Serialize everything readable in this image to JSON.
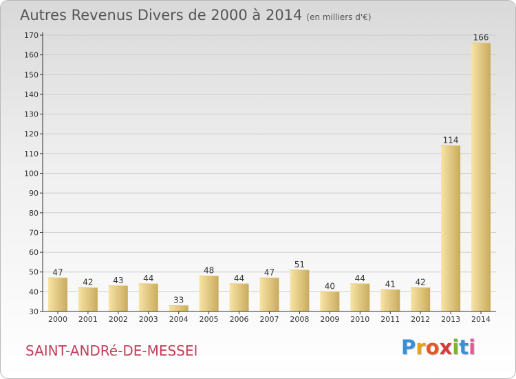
{
  "header": {
    "title": "Autres Revenus Divers de 2000 à 2014",
    "unit": "(en milliers d'€)"
  },
  "footer": {
    "commune": "SAINT-ANDRé-DE-MESSEI",
    "logo_letters": [
      "P",
      "r",
      "o",
      "x",
      "i",
      "t",
      "i"
    ],
    "logo_colors": [
      "#3a8fd6",
      "#e8a020",
      "#e05a2a",
      "#d83a3a",
      "#7ab32e",
      "#3a8fd6",
      "#e05a9a"
    ]
  },
  "colors": {
    "bar_light": "#f8e4a4",
    "bar_dark": "#c9ab5e",
    "axis": "#333333",
    "grid": "#cccccc",
    "text": "#333333"
  },
  "chart_data": {
    "type": "bar",
    "categories": [
      "2000",
      "2001",
      "2002",
      "2003",
      "2004",
      "2005",
      "2006",
      "2007",
      "2008",
      "2009",
      "2010",
      "2011",
      "2012",
      "2013",
      "2014"
    ],
    "values": [
      47,
      42,
      43,
      44,
      33,
      48,
      44,
      47,
      51,
      40,
      44,
      41,
      42,
      114,
      166
    ],
    "data_labels": [
      "47",
      "42",
      "43",
      "44",
      "33",
      "48",
      "44",
      "47",
      "51",
      "40",
      "44",
      "41",
      "42",
      "114",
      "166"
    ],
    "ylim": [
      30,
      170
    ],
    "yticks": [
      30,
      40,
      50,
      60,
      70,
      80,
      90,
      100,
      110,
      120,
      130,
      140,
      150,
      160,
      170
    ],
    "grid": true,
    "legend": "none"
  }
}
